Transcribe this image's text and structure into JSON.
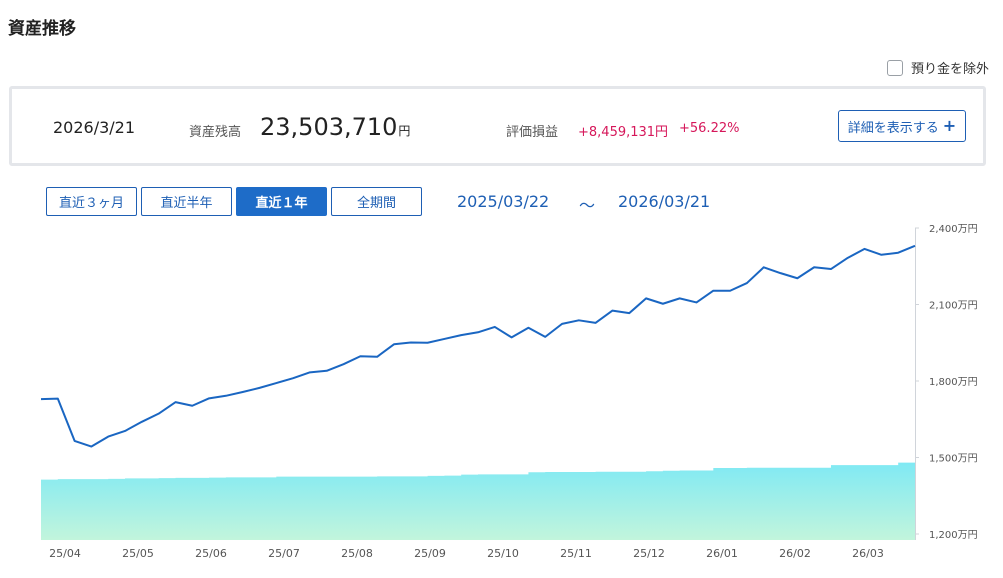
{
  "page": {
    "title": "資産推移"
  },
  "exclude_deposit": {
    "label": "預り金を除外",
    "checked": false
  },
  "summary": {
    "date": "2026/3/21",
    "balance_label": "資産残高",
    "balance_value": "23,503,710",
    "balance_unit": "円",
    "pl_label": "評価損益",
    "pl_amount": "+8,459,131円",
    "pl_percent": "+56.22%",
    "detail_button": "詳細を表示する"
  },
  "range": {
    "buttons": [
      "直近３ヶ月",
      "直近半年",
      "直近１年",
      "全期間"
    ],
    "active_index": 2,
    "start": "2025/03/22",
    "separator": "～",
    "end": "2026/03/21"
  },
  "colors": {
    "accent": "#1e5fb4",
    "line": "#1a66c2",
    "area_top": "#7fe9f4",
    "area_bottom": "#c2f5dc",
    "profit": "#d6175a"
  },
  "chart_data": {
    "type": "line",
    "yunit": "万円",
    "ylim": [
      1200,
      2400
    ],
    "yticks": [
      "2,400万円",
      "2,100万円",
      "1,800万円",
      "1,500万円",
      "1,200万円"
    ],
    "ytick_values": [
      2400,
      2100,
      1800,
      1500,
      1200
    ],
    "xticks": [
      "25/04",
      "25/05",
      "25/06",
      "25/07",
      "25/08",
      "25/09",
      "25/10",
      "25/11",
      "25/12",
      "26/01",
      "26/02",
      "26/03"
    ],
    "series": [
      {
        "kind": "line",
        "values": [
          1729,
          1731,
          1565,
          1543,
          1582,
          1604,
          1640,
          1672,
          1717,
          1703,
          1732,
          1742,
          1757,
          1773,
          1792,
          1811,
          1834,
          1840,
          1866,
          1897,
          1895,
          1944,
          1951,
          1950,
          1965,
          1980,
          1991,
          2012,
          1971,
          2009,
          1973,
          2024,
          2038,
          2028,
          2076,
          2066,
          2124,
          2103,
          2124,
          2108,
          2154,
          2154,
          2184,
          2246,
          2223,
          2203,
          2246,
          2239,
          2283,
          2318,
          2295,
          2303,
          2330
        ]
      },
      {
        "kind": "area",
        "values": [
          1413,
          1415,
          1415,
          1415,
          1416,
          1418,
          1418,
          1419,
          1420,
          1420,
          1421,
          1422,
          1422,
          1422,
          1425,
          1425,
          1425,
          1425,
          1425,
          1425,
          1426,
          1426,
          1426,
          1428,
          1429,
          1433,
          1434,
          1434,
          1434,
          1442,
          1443,
          1443,
          1443,
          1444,
          1444,
          1444,
          1446,
          1448,
          1449,
          1449,
          1459,
          1459,
          1460,
          1460,
          1460,
          1460,
          1460,
          1470,
          1470,
          1470,
          1470,
          1480,
          1481
        ]
      }
    ]
  }
}
